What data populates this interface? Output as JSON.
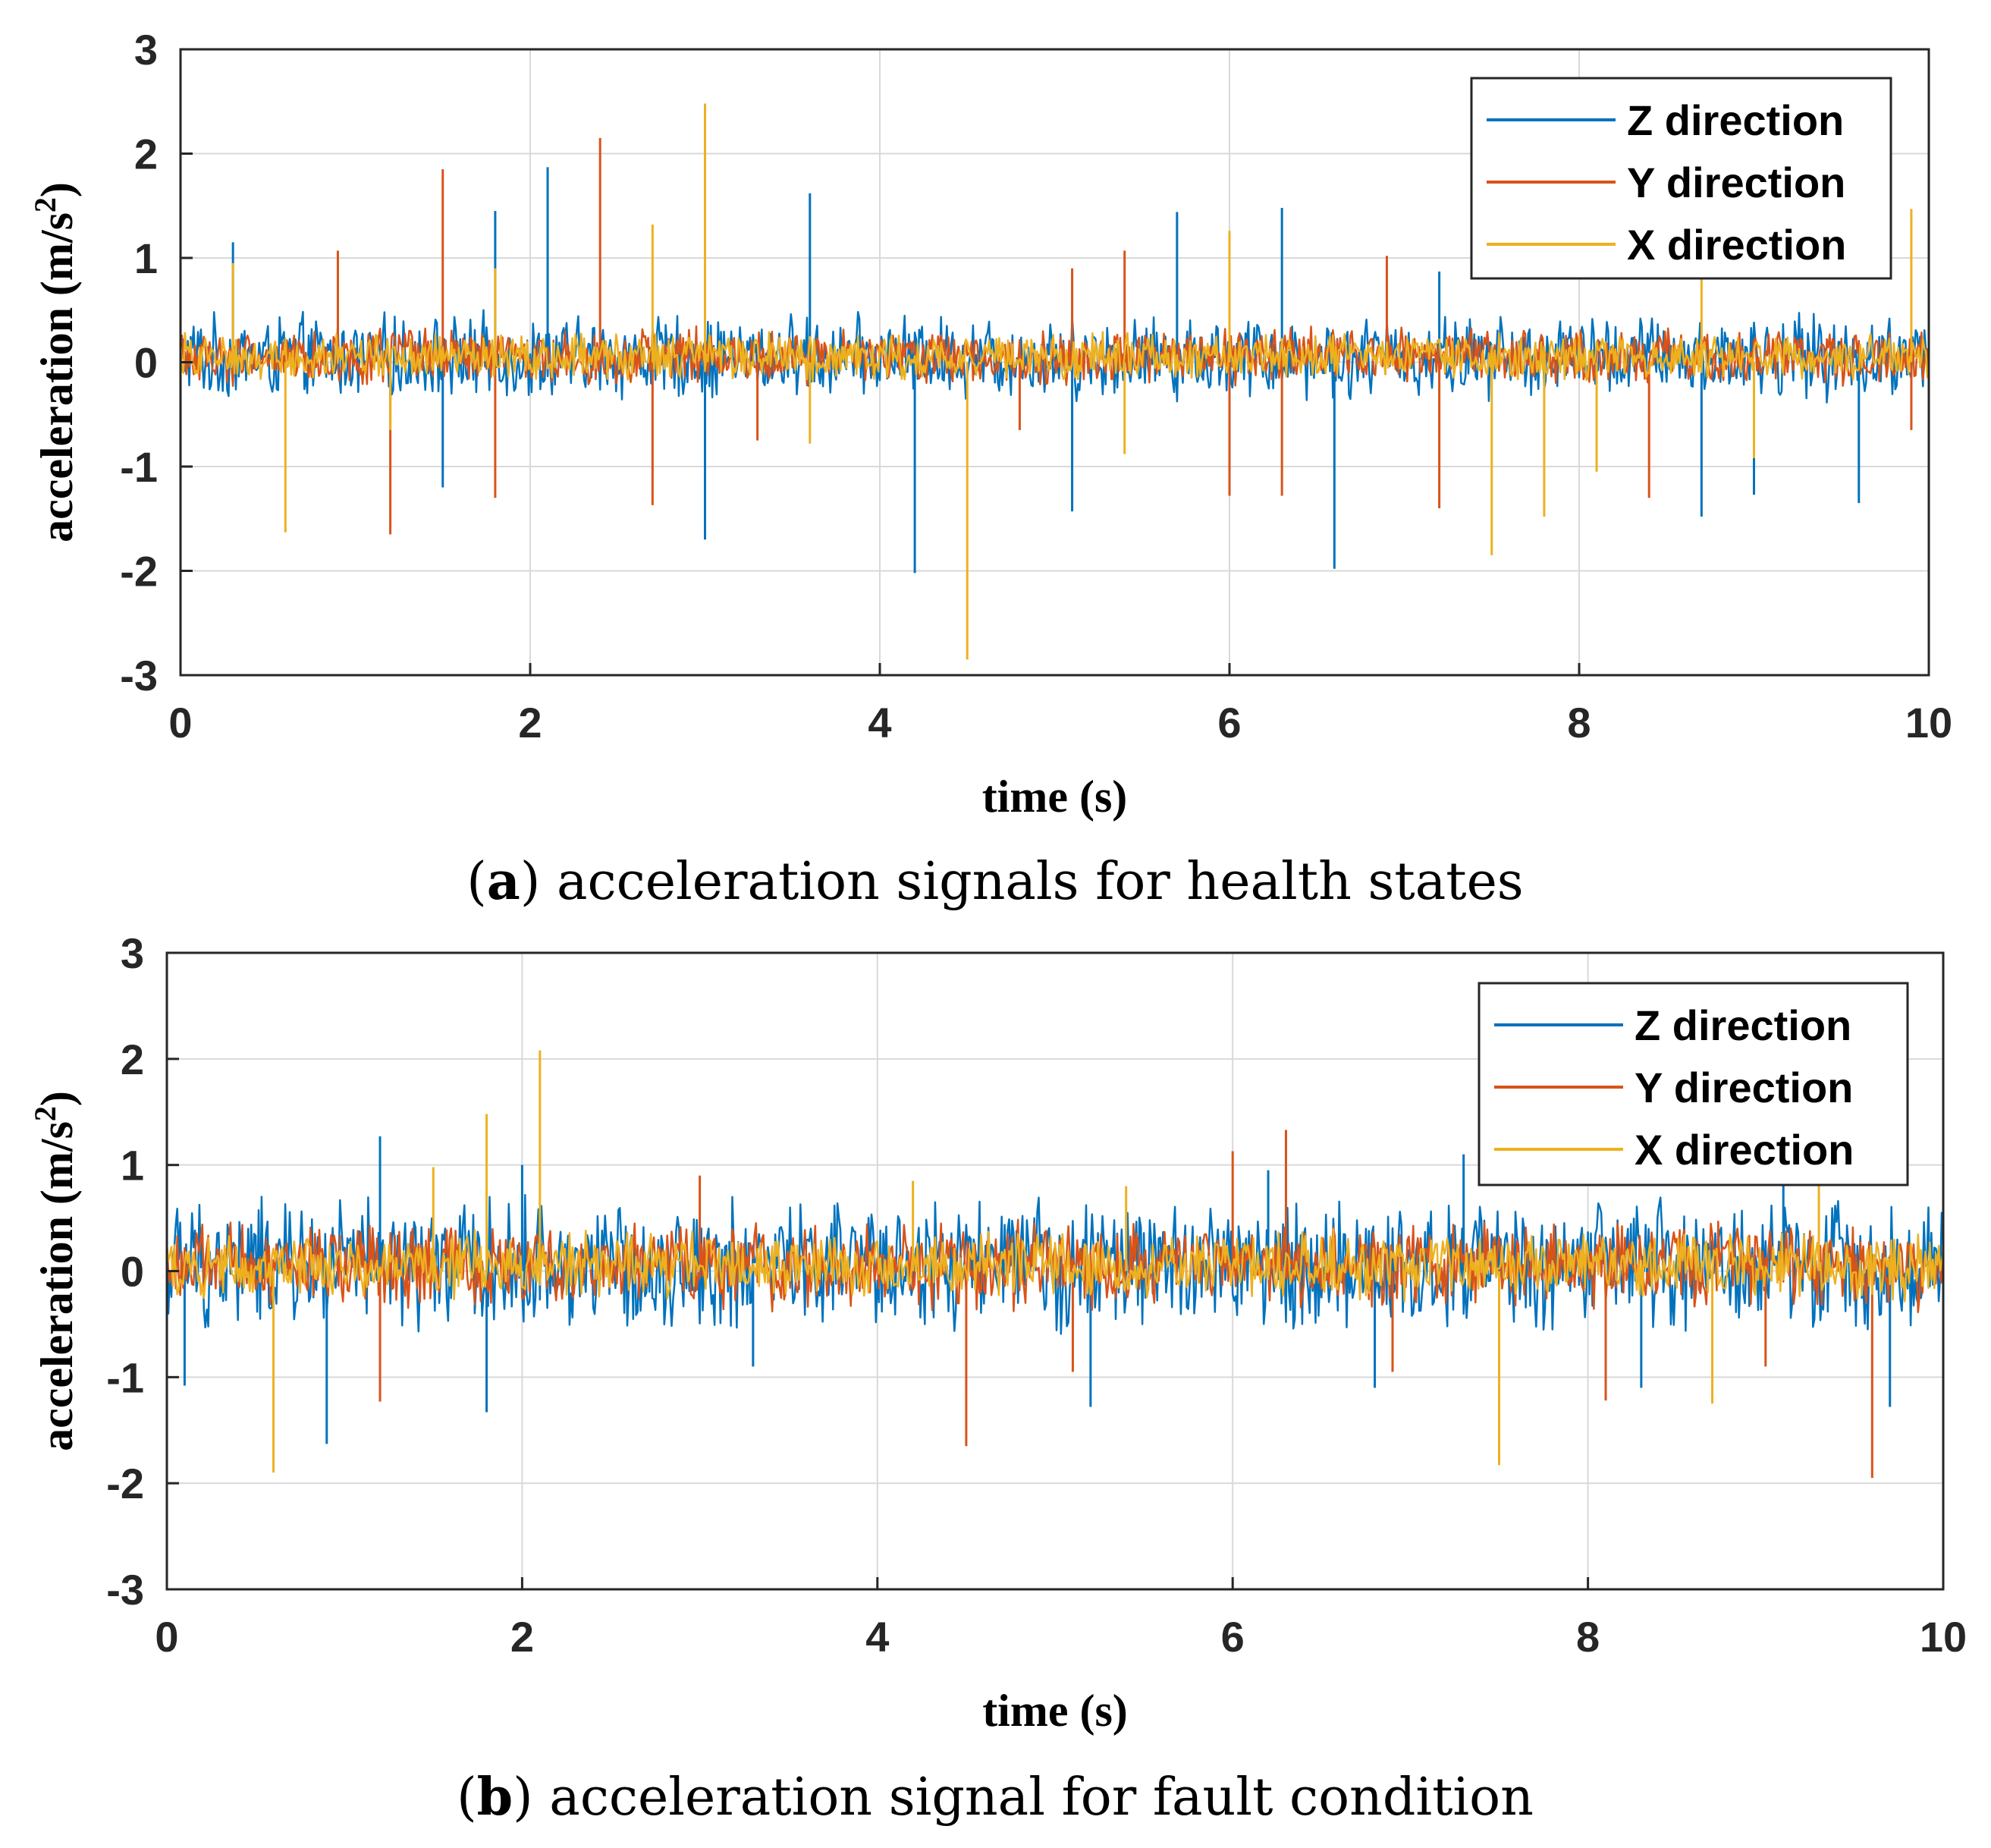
{
  "chart_data": [
    {
      "type": "line",
      "panel": "a",
      "caption_letter": "a",
      "caption_rest": " acceleration signals for health states",
      "xlabel": "time (s)",
      "ylabel": "acceleration (m/s",
      "ylabel_sup": "2",
      "ylabel_close": ")",
      "xlim": [
        0,
        10
      ],
      "ylim": [
        -3,
        3
      ],
      "xticks": [
        0,
        2,
        4,
        6,
        8,
        10
      ],
      "yticks": [
        -3,
        -2,
        -1,
        0,
        1,
        2,
        3
      ],
      "grid": true,
      "legend_position": "top-right",
      "noise_amplitude": {
        "Z direction": 0.45,
        "Y direction": 0.3,
        "X direction": 0.25
      },
      "series": [
        {
          "name": "Z direction",
          "color": "#0072BD",
          "spikes": [
            [
              0.3,
              1.15
            ],
            [
              1.5,
              -1.2
            ],
            [
              1.8,
              1.45
            ],
            [
              2.1,
              1.87
            ],
            [
              3.0,
              -1.7
            ],
            [
              3.6,
              1.62
            ],
            [
              4.2,
              -2.02
            ],
            [
              5.1,
              -1.43
            ],
            [
              5.7,
              1.44
            ],
            [
              6.3,
              1.48
            ],
            [
              6.6,
              -1.98
            ],
            [
              7.2,
              0.87
            ],
            [
              8.7,
              -1.48
            ],
            [
              9.0,
              -1.27
            ],
            [
              9.6,
              -1.35
            ]
          ]
        },
        {
          "name": "Y direction",
          "color": "#D95319",
          "spikes": [
            [
              0.9,
              1.07
            ],
            [
              1.2,
              -1.65
            ],
            [
              1.5,
              1.85
            ],
            [
              1.8,
              -1.3
            ],
            [
              2.4,
              2.15
            ],
            [
              2.7,
              -1.37
            ],
            [
              3.3,
              -0.75
            ],
            [
              4.8,
              -0.65
            ],
            [
              5.1,
              0.9
            ],
            [
              5.4,
              1.07
            ],
            [
              6.0,
              -1.28
            ],
            [
              6.3,
              -1.28
            ],
            [
              6.9,
              1.02
            ],
            [
              7.2,
              -1.4
            ],
            [
              8.4,
              -1.3
            ],
            [
              9.9,
              -0.65
            ]
          ]
        },
        {
          "name": "X direction",
          "color": "#EDB120",
          "spikes": [
            [
              0.3,
              0.95
            ],
            [
              0.6,
              -1.63
            ],
            [
              1.2,
              -0.65
            ],
            [
              1.8,
              0.9
            ],
            [
              2.7,
              1.32
            ],
            [
              3.0,
              2.48
            ],
            [
              3.6,
              -0.78
            ],
            [
              4.5,
              -2.85
            ],
            [
              5.4,
              -0.88
            ],
            [
              6.0,
              1.26
            ],
            [
              7.5,
              -1.85
            ],
            [
              7.8,
              -1.48
            ],
            [
              8.1,
              -1.05
            ],
            [
              8.7,
              0.95
            ],
            [
              9.0,
              -0.92
            ],
            [
              9.9,
              1.47
            ]
          ]
        }
      ]
    },
    {
      "type": "line",
      "panel": "b",
      "caption_letter": "b",
      "caption_rest": " acceleration signal for fault condition",
      "xlabel": "time (s)",
      "ylabel": "acceleration (m/s",
      "ylabel_sup": "2",
      "ylabel_close": ")",
      "xlim": [
        0,
        10
      ],
      "ylim": [
        -3,
        3
      ],
      "xticks": [
        0,
        2,
        4,
        6,
        8,
        10
      ],
      "yticks": [
        -3,
        -2,
        -1,
        0,
        1,
        2,
        3
      ],
      "grid": true,
      "legend_position": "top-right",
      "noise_amplitude": {
        "Z direction": 0.7,
        "Y direction": 0.45,
        "X direction": 0.35
      },
      "series": [
        {
          "name": "Z direction",
          "color": "#0072BD",
          "spikes": [
            [
              0.1,
              -1.08
            ],
            [
              0.9,
              -1.63
            ],
            [
              1.2,
              1.27
            ],
            [
              1.8,
              -1.33
            ],
            [
              2.0,
              1.0
            ],
            [
              3.3,
              -0.9
            ],
            [
              5.2,
              -1.28
            ],
            [
              6.2,
              0.95
            ],
            [
              6.8,
              -1.1
            ],
            [
              7.3,
              1.1
            ],
            [
              8.3,
              -1.1
            ],
            [
              9.1,
              0.95
            ],
            [
              9.7,
              -1.28
            ]
          ]
        },
        {
          "name": "Y direction",
          "color": "#D95319",
          "spikes": [
            [
              1.2,
              -1.23
            ],
            [
              3.0,
              0.9
            ],
            [
              4.5,
              -1.65
            ],
            [
              5.1,
              -0.95
            ],
            [
              6.0,
              1.13
            ],
            [
              6.3,
              1.33
            ],
            [
              6.9,
              -0.95
            ],
            [
              8.1,
              -1.22
            ],
            [
              9.0,
              -0.9
            ],
            [
              9.6,
              -1.95
            ]
          ]
        },
        {
          "name": "X direction",
          "color": "#EDB120",
          "spikes": [
            [
              0.6,
              -1.9
            ],
            [
              1.5,
              0.98
            ],
            [
              1.8,
              1.48
            ],
            [
              2.1,
              2.08
            ],
            [
              4.2,
              0.85
            ],
            [
              5.4,
              0.8
            ],
            [
              7.5,
              -1.83
            ],
            [
              8.7,
              -1.25
            ],
            [
              9.3,
              0.95
            ]
          ]
        }
      ]
    }
  ]
}
